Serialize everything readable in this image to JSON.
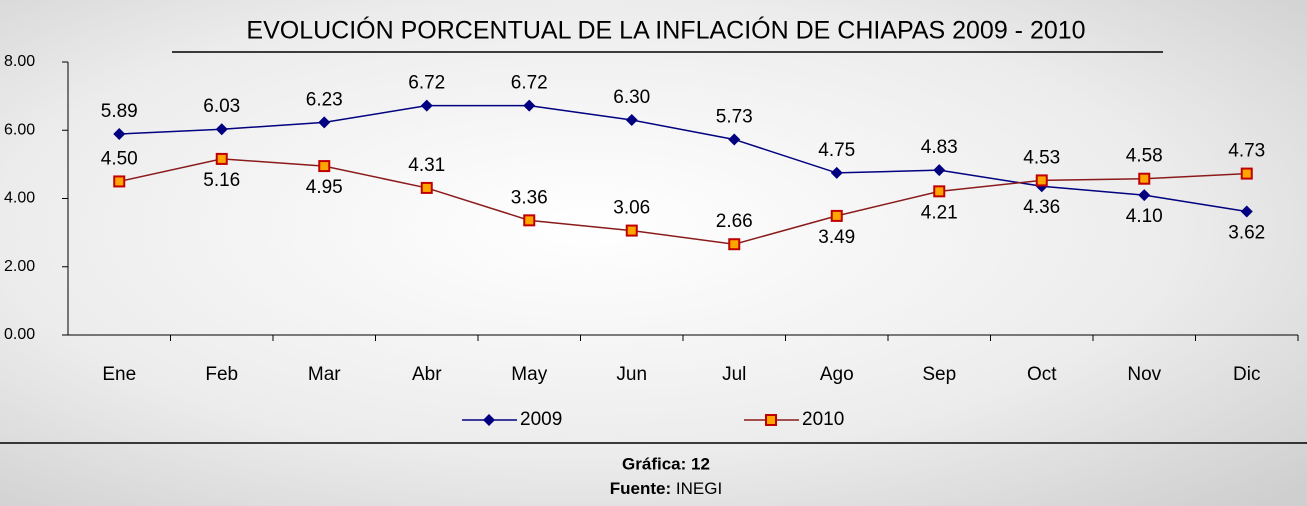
{
  "chart_data": {
    "type": "line",
    "title": "EVOLUCIÓN PORCENTUAL DE LA INFLACIÓN DE CHIAPAS 2009 -  2010",
    "categories": [
      "Ene",
      "Feb",
      "Mar",
      "Abr",
      "May",
      "Jun",
      "Jul",
      "Ago",
      "Sep",
      "Oct",
      "Nov",
      "Dic"
    ],
    "series": [
      {
        "name": "2009",
        "color": "#000080",
        "marker": "diamond",
        "values": [
          5.89,
          6.03,
          6.23,
          6.72,
          6.72,
          6.3,
          5.73,
          4.75,
          4.83,
          4.36,
          4.1,
          3.62
        ],
        "value_labels": [
          "5.89",
          "6.03",
          "6.23",
          "6.72",
          "6.72",
          "6.30",
          "5.73",
          "4.75",
          "4.83",
          "4.36",
          "4.10",
          "3.62"
        ]
      },
      {
        "name": "2010",
        "color": "#8b1a1a",
        "marker": "square",
        "values": [
          4.5,
          5.16,
          4.95,
          4.31,
          3.36,
          3.06,
          2.66,
          3.49,
          4.21,
          4.53,
          4.58,
          4.73
        ],
        "value_labels": [
          "4.50",
          "5.16",
          "4.95",
          "4.31",
          "3.36",
          "3.06",
          "2.66",
          "3.49",
          "4.21",
          "4.53",
          "4.58",
          "4.73"
        ]
      }
    ],
    "ylim": [
      0,
      8
    ],
    "yticks": [
      {
        "value": 0,
        "label": "0.00"
      },
      {
        "value": 2,
        "label": "2.00"
      },
      {
        "value": 4,
        "label": "4.00"
      },
      {
        "value": 6,
        "label": "6.00"
      },
      {
        "value": 8,
        "label": "8.00"
      }
    ],
    "legend": "bottom"
  },
  "footer": {
    "figure": "Gráfica: 12",
    "source_label": "Fuente:",
    "source": "INEGI"
  }
}
